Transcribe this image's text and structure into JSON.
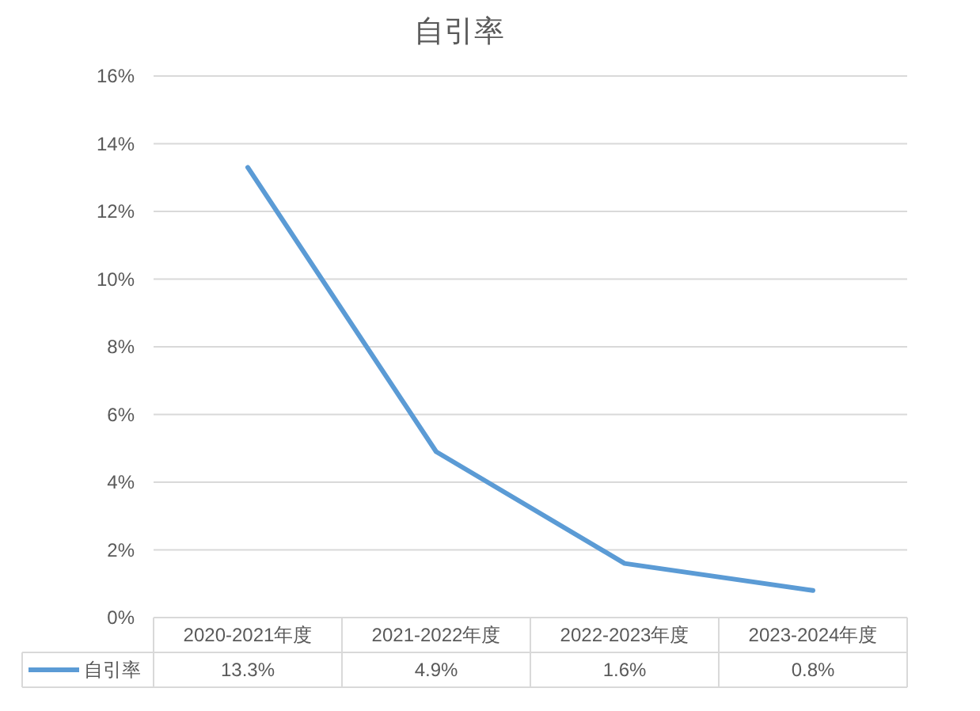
{
  "chart_data": {
    "type": "line",
    "title": "自引率",
    "categories": [
      "2020-2021年度",
      "2021-2022年度",
      "2022-2023年度",
      "2023-2024年度"
    ],
    "series": [
      {
        "name": "自引率",
        "color": "#5b9bd5",
        "values": [
          13.3,
          4.9,
          1.6,
          0.8
        ]
      }
    ],
    "ylim": [
      0,
      16
    ],
    "yticks": [
      {
        "value": 0,
        "label": "0%"
      },
      {
        "value": 2,
        "label": "2%"
      },
      {
        "value": 4,
        "label": "4%"
      },
      {
        "value": 6,
        "label": "6%"
      },
      {
        "value": 8,
        "label": "8%"
      },
      {
        "value": 10,
        "label": "10%"
      },
      {
        "value": 12,
        "label": "12%"
      },
      {
        "value": 14,
        "label": "14%"
      },
      {
        "value": 16,
        "label": "16%"
      }
    ],
    "value_labels": [
      [
        "13.3%",
        "4.9%",
        "1.6%",
        "0.8%"
      ]
    ],
    "grid": "y",
    "legend": "bottom",
    "marker": "none",
    "line_style": "solid"
  }
}
